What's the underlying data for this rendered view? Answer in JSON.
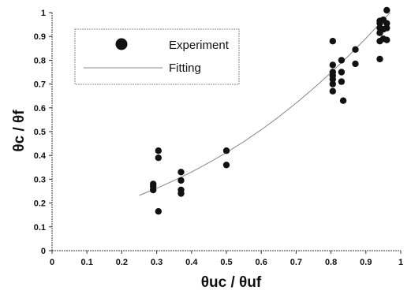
{
  "chart_data": {
    "type": "scatter",
    "title": "",
    "xlabel": "θuc / θuf",
    "ylabel": "θc / θf",
    "xlim": [
      0,
      1
    ],
    "ylim": [
      0,
      1
    ],
    "xticks": [
      "0",
      "0.1",
      "0.2",
      "0.3",
      "0.4",
      "0.5",
      "0.6",
      "0.7",
      "0.8",
      "0.9",
      "1"
    ],
    "yticks": [
      "0",
      "0.1",
      "0.2",
      "0.3",
      "0.4",
      "0.5",
      "0.6",
      "0.7",
      "0.8",
      "0.9",
      "1"
    ],
    "grid": false,
    "legend": {
      "placement": "top-left",
      "entries": [
        "Experiment",
        "Fitting"
      ]
    },
    "series": [
      {
        "name": "Experiment",
        "kind": "scatter",
        "points": [
          [
            0.29,
            0.28
          ],
          [
            0.29,
            0.27
          ],
          [
            0.29,
            0.255
          ],
          [
            0.305,
            0.42
          ],
          [
            0.305,
            0.39
          ],
          [
            0.305,
            0.165
          ],
          [
            0.37,
            0.33
          ],
          [
            0.37,
            0.295
          ],
          [
            0.37,
            0.255
          ],
          [
            0.37,
            0.24
          ],
          [
            0.5,
            0.42
          ],
          [
            0.5,
            0.36
          ],
          [
            0.805,
            0.88
          ],
          [
            0.805,
            0.78
          ],
          [
            0.805,
            0.75
          ],
          [
            0.805,
            0.735
          ],
          [
            0.805,
            0.72
          ],
          [
            0.805,
            0.7
          ],
          [
            0.805,
            0.67
          ],
          [
            0.83,
            0.8
          ],
          [
            0.83,
            0.75
          ],
          [
            0.83,
            0.71
          ],
          [
            0.835,
            0.63
          ],
          [
            0.87,
            0.845
          ],
          [
            0.87,
            0.785
          ],
          [
            0.94,
            0.805
          ],
          [
            0.94,
            0.88
          ],
          [
            0.94,
            0.915
          ],
          [
            0.94,
            0.935
          ],
          [
            0.94,
            0.955
          ],
          [
            0.94,
            0.965
          ],
          [
            0.95,
            0.97
          ],
          [
            0.95,
            0.93
          ],
          [
            0.95,
            0.89
          ],
          [
            0.96,
            1.01
          ],
          [
            0.96,
            0.955
          ],
          [
            0.96,
            0.935
          ],
          [
            0.96,
            0.885
          ]
        ]
      },
      {
        "name": "Fitting",
        "kind": "line",
        "points": [
          [
            0.25,
            0.232
          ],
          [
            0.3,
            0.262
          ],
          [
            0.35,
            0.295
          ],
          [
            0.4,
            0.33
          ],
          [
            0.45,
            0.37
          ],
          [
            0.5,
            0.412
          ],
          [
            0.55,
            0.458
          ],
          [
            0.6,
            0.508
          ],
          [
            0.65,
            0.562
          ],
          [
            0.7,
            0.62
          ],
          [
            0.75,
            0.682
          ],
          [
            0.8,
            0.748
          ],
          [
            0.85,
            0.818
          ],
          [
            0.9,
            0.892
          ],
          [
            0.95,
            0.97
          ],
          [
            0.97,
            1.0
          ]
        ]
      }
    ]
  }
}
